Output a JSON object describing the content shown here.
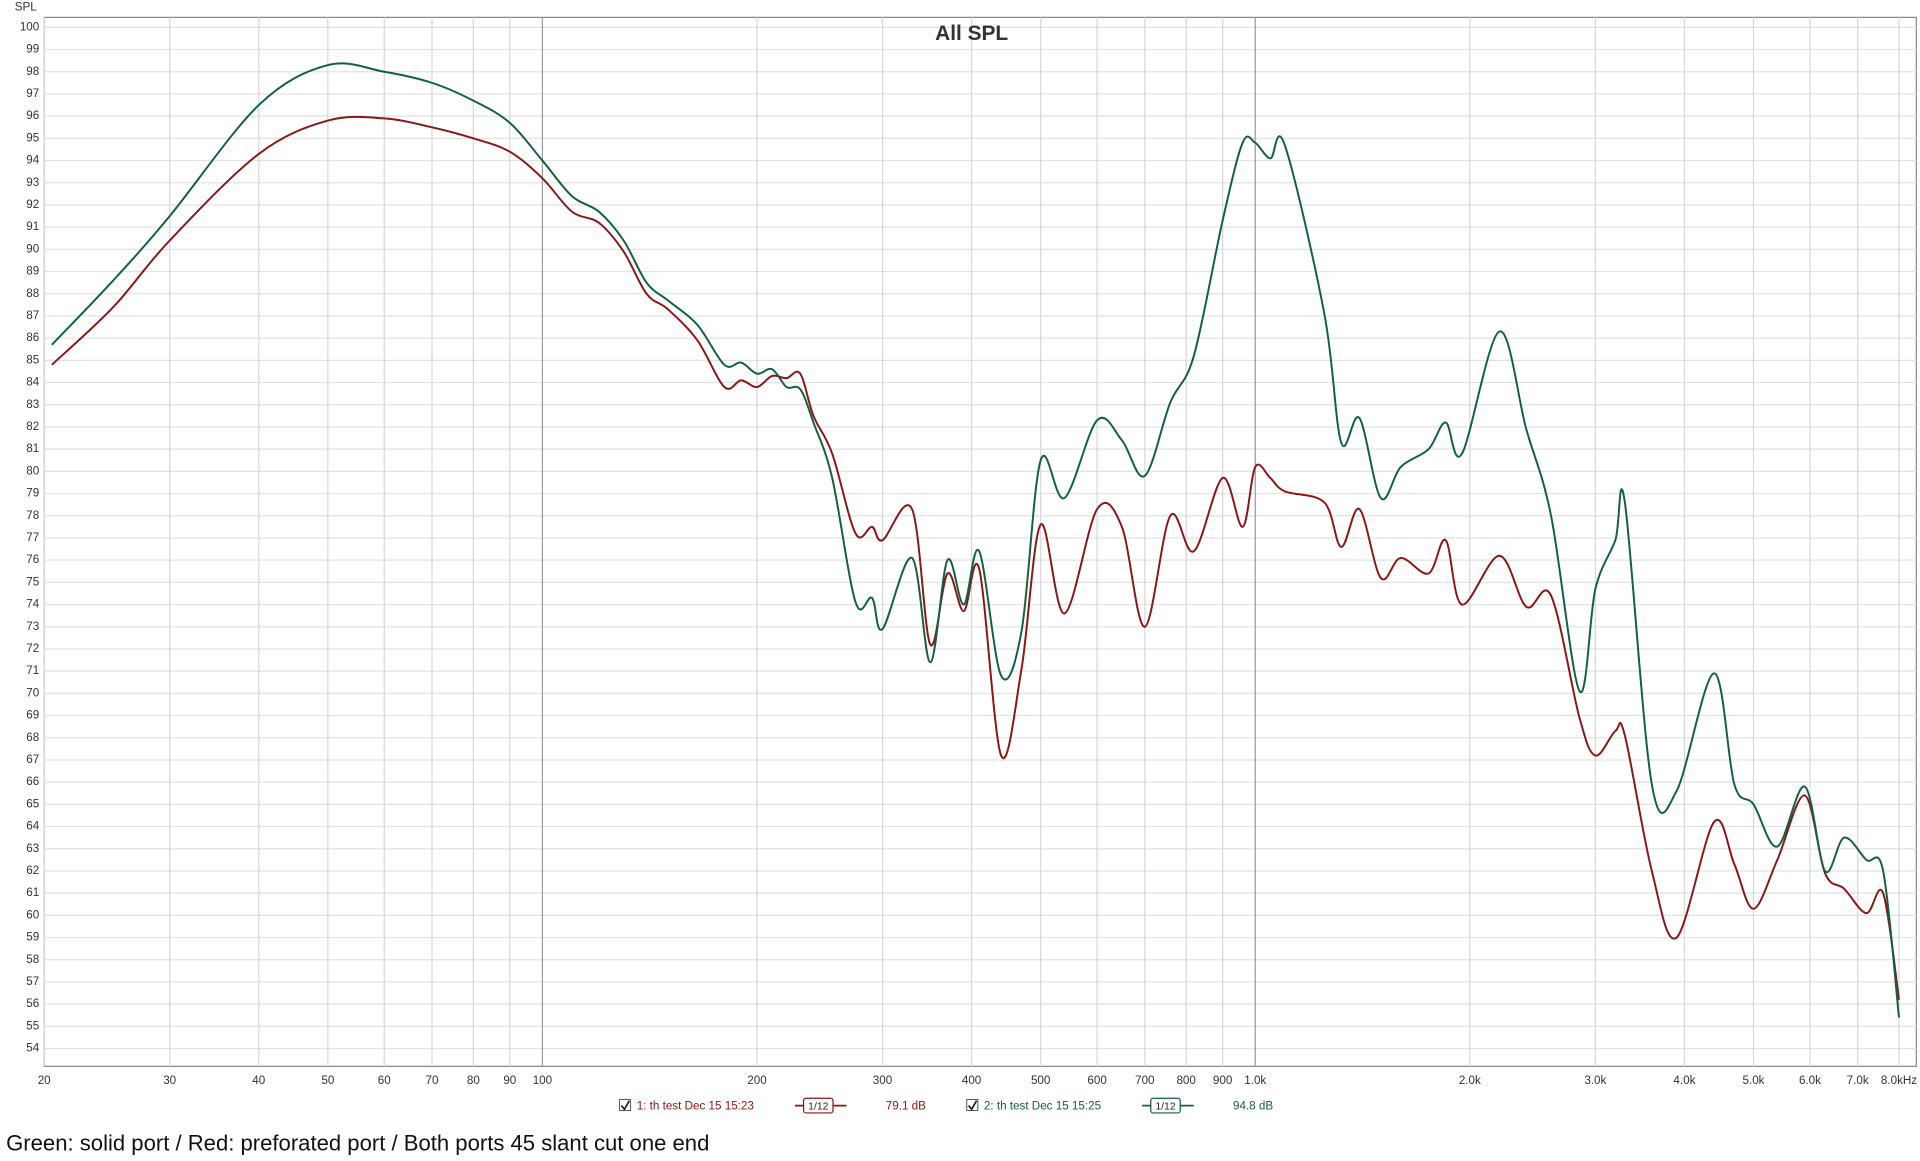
{
  "chart_data": {
    "type": "line",
    "title": "All SPL",
    "y_label": "SPL",
    "x_scale": "log",
    "grid": true,
    "xlim": [
      20,
      8460
    ],
    "ylim": [
      53.2,
      100.45
    ],
    "xticks": [
      20,
      30,
      40,
      50,
      60,
      70,
      80,
      90,
      100,
      200,
      300,
      400,
      500,
      600,
      700,
      800,
      900,
      {
        "value": 1000,
        "label": "1.0k"
      },
      {
        "value": 2000,
        "label": "2.0k"
      },
      {
        "value": 3000,
        "label": "3.0k"
      },
      {
        "value": 4000,
        "label": "4.0k"
      },
      {
        "value": 5000,
        "label": "5.0k"
      },
      {
        "value": 6000,
        "label": "6.0k"
      },
      {
        "value": 7000,
        "label": "7.0k"
      },
      {
        "value": 8000,
        "label": "8.0kHz"
      }
    ],
    "yticks": [
      54,
      55,
      56,
      57,
      58,
      59,
      60,
      61,
      62,
      63,
      64,
      65,
      66,
      67,
      68,
      69,
      70,
      71,
      72,
      73,
      74,
      75,
      76,
      77,
      78,
      79,
      80,
      81,
      82,
      83,
      84,
      85,
      86,
      87,
      88,
      89,
      90,
      91,
      92,
      93,
      94,
      95,
      96,
      97,
      98,
      99,
      100
    ],
    "x": [
      20.5,
      25,
      30,
      40,
      50,
      60,
      70,
      80,
      90,
      100,
      110,
      120,
      130,
      140,
      150,
      165,
      180,
      190,
      200,
      210,
      220,
      230,
      240,
      255,
      275,
      290,
      300,
      330,
      350,
      370,
      390,
      410,
      440,
      470,
      500,
      540,
      600,
      650,
      700,
      760,
      820,
      900,
      960,
      1000,
      1050,
      1100,
      1250,
      1320,
      1400,
      1500,
      1600,
      1750,
      1850,
      1950,
      2200,
      2400,
      2600,
      2850,
      3000,
      3200,
      3300,
      3600,
      3900,
      4400,
      4700,
      5000,
      5400,
      5900,
      6300,
      6700,
      7200,
      7600,
      8000
    ],
    "series": [
      {
        "name": "1: th test Dec 15 15:23",
        "smoothing": "1/12",
        "level": "79.1 dB",
        "color": "#8c1515",
        "values": [
          84.8,
          87.4,
          90.4,
          94.3,
          95.8,
          95.9,
          95.5,
          95.0,
          94.4,
          93.2,
          91.7,
          91.2,
          89.9,
          88.0,
          87.3,
          85.9,
          83.8,
          84.1,
          83.8,
          84.3,
          84.2,
          84.4,
          82.5,
          80.8,
          77.2,
          77.5,
          76.9,
          78.3,
          72.2,
          75.4,
          73.7,
          75.6,
          67.2,
          71.1,
          77.6,
          73.6,
          78.3,
          77.5,
          73.0,
          78.0,
          76.4,
          79.7,
          77.5,
          80.2,
          79.7,
          79.1,
          78.6,
          76.6,
          78.3,
          75.2,
          76.1,
          75.4,
          76.9,
          74.0,
          76.2,
          73.9,
          74.4,
          68.9,
          67.2,
          68.3,
          68.1,
          62.0,
          59.0,
          64.2,
          62.3,
          60.3,
          62.5,
          65.4,
          61.9,
          61.2,
          60.1,
          61.0,
          56.2
        ]
      },
      {
        "name": "2: th test Dec 15 15:25",
        "smoothing": "1/12",
        "level": "94.8 dB",
        "color": "#116040",
        "values": [
          85.7,
          88.6,
          91.5,
          96.5,
          98.3,
          98.0,
          97.5,
          96.7,
          95.7,
          94.0,
          92.4,
          91.7,
          90.4,
          88.5,
          87.7,
          86.6,
          84.8,
          84.9,
          84.4,
          84.6,
          83.8,
          83.7,
          82.2,
          79.7,
          74.1,
          74.3,
          72.9,
          76.1,
          71.4,
          76.0,
          74.0,
          76.4,
          70.8,
          72.8,
          80.5,
          78.8,
          82.3,
          81.4,
          79.8,
          83.1,
          85.2,
          91.3,
          94.8,
          94.8,
          94.1,
          94.7,
          87.1,
          81.3,
          82.4,
          78.8,
          80.2,
          81.0,
          82.2,
          80.8,
          86.3,
          81.9,
          78.0,
          70.1,
          74.7,
          76.9,
          78.6,
          65.9,
          65.6,
          70.9,
          65.9,
          65.0,
          63.1,
          65.8,
          62.0,
          63.5,
          62.5,
          62.0,
          55.4
        ]
      }
    ]
  },
  "caption": "Green: solid port / Red: preforated port / Both ports 45 slant cut one end"
}
